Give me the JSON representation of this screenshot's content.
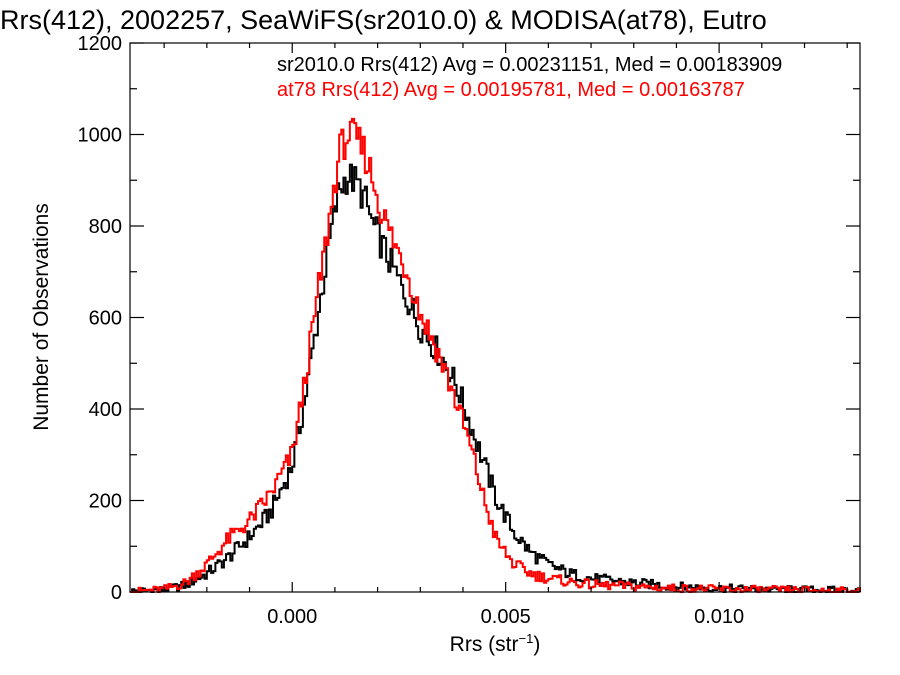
{
  "chart_data": {
    "type": "histogram-step",
    "title": "Rrs(412), 2002257, SeaWiFS(sr2010.0) & MODISA(at78), Eutro",
    "xlabel_base": "Rrs (str",
    "xlabel_exp": "−1",
    "xlabel_close": ")",
    "ylabel": "Number of Observations",
    "xlim": [
      -0.0038,
      0.0133
    ],
    "ylim": [
      0,
      1200
    ],
    "x_ticks": [
      0.0,
      0.005,
      0.01
    ],
    "x_tick_labels": [
      "0.000",
      "0.005",
      "0.010"
    ],
    "y_ticks": [
      0,
      200,
      400,
      600,
      800,
      1000,
      1200
    ],
    "y_tick_labels": [
      "0",
      "200",
      "400",
      "600",
      "800",
      "1000",
      "1200"
    ],
    "grid": false,
    "legend_text": [
      "sr2010.0 Rrs(412) Avg = 0.00231151, Med = 0.00183909",
      "at78 Rrs(412) Avg = 0.00195781, Med = 0.00163787"
    ],
    "series": [
      {
        "color": "#000000",
        "x": [
          -0.0038,
          -0.003,
          -0.0025,
          -0.002,
          -0.0015,
          -0.001,
          -0.0005,
          0.0,
          0.0003,
          0.0006,
          0.0009,
          0.0011,
          0.0013,
          0.0015,
          0.0017,
          0.0019,
          0.0021,
          0.0024,
          0.0027,
          0.003,
          0.0033,
          0.0036,
          0.0039,
          0.0042,
          0.0045,
          0.0048,
          0.0052,
          0.0056,
          0.006,
          0.0065,
          0.007,
          0.008,
          0.009,
          0.01,
          0.011,
          0.012,
          0.0133
        ],
        "y": [
          2,
          5,
          15,
          40,
          75,
          120,
          175,
          275,
          420,
          600,
          780,
          880,
          910,
          895,
          860,
          800,
          760,
          700,
          640,
          580,
          540,
          500,
          440,
          360,
          280,
          200,
          130,
          85,
          60,
          40,
          30,
          20,
          12,
          8,
          6,
          5,
          3
        ]
      },
      {
        "color": "#ff0000",
        "x": [
          -0.0038,
          -0.003,
          -0.0025,
          -0.002,
          -0.0015,
          -0.001,
          -0.0005,
          0.0,
          0.0003,
          0.0006,
          0.0009,
          0.0011,
          0.0013,
          0.0015,
          0.0017,
          0.0019,
          0.0021,
          0.0024,
          0.0027,
          0.003,
          0.0033,
          0.0036,
          0.0039,
          0.0042,
          0.0045,
          0.0048,
          0.0052,
          0.0056,
          0.006,
          0.0065,
          0.007,
          0.008,
          0.009,
          0.01,
          0.011,
          0.012,
          0.0133
        ],
        "y": [
          1,
          6,
          20,
          60,
          115,
          155,
          215,
          300,
          460,
          650,
          830,
          960,
          1000,
          990,
          960,
          900,
          830,
          760,
          700,
          610,
          550,
          480,
          400,
          310,
          200,
          110,
          60,
          40,
          30,
          22,
          16,
          12,
          8,
          6,
          5,
          4,
          2
        ]
      }
    ]
  }
}
